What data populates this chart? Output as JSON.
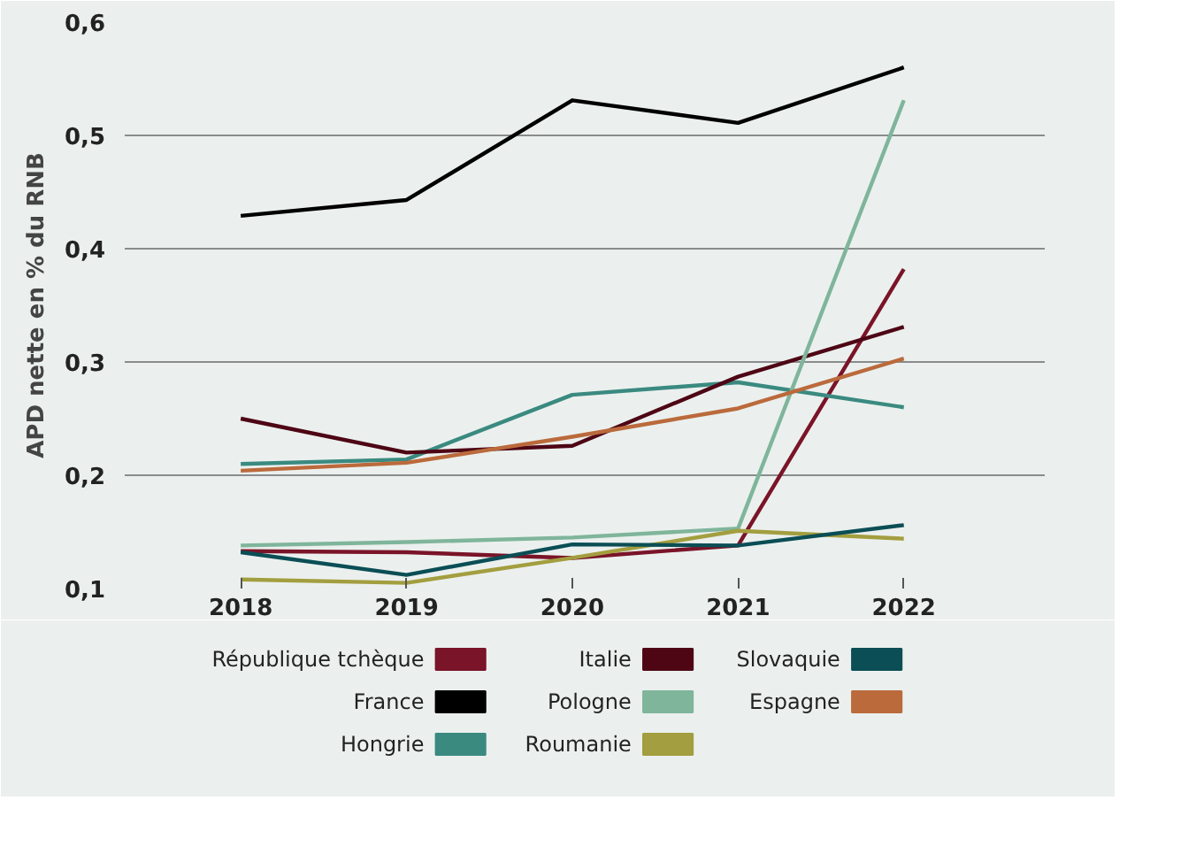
{
  "chart_data": {
    "type": "line",
    "ylabel": "APD nette en % du RNB",
    "x": [
      2018,
      2019,
      2020,
      2021,
      2022
    ],
    "xlim": [
      2017.3,
      2022.85
    ],
    "xticks": [
      2018,
      2019,
      2020,
      2021,
      2022
    ],
    "ylim": [
      0.1,
      0.6
    ],
    "yticks": [
      {
        "value": 0.1,
        "label": "0,1"
      },
      {
        "value": 0.2,
        "label": "0,2"
      },
      {
        "value": 0.3,
        "label": "0,3"
      },
      {
        "value": 0.4,
        "label": "0,4"
      },
      {
        "value": 0.5,
        "label": "0,5"
      },
      {
        "value": 0.6,
        "label": "0,6"
      }
    ],
    "grid": "y",
    "legend": "bottom",
    "marker": "none",
    "line_style": "solid",
    "series": [
      {
        "name": "République tchèque",
        "color": "#7a1428",
        "values": [
          0.133,
          0.132,
          0.127,
          0.138,
          0.382
        ]
      },
      {
        "name": "France",
        "color": "#000000",
        "values": [
          0.429,
          0.443,
          0.531,
          0.511,
          0.56
        ]
      },
      {
        "name": "Hongrie",
        "color": "#3a8a80",
        "values": [
          0.21,
          0.214,
          0.271,
          0.282,
          0.26
        ]
      },
      {
        "name": "Italie",
        "color": "#4e0615",
        "values": [
          0.25,
          0.22,
          0.226,
          0.287,
          0.331
        ]
      },
      {
        "name": "Pologne",
        "color": "#7fb59b",
        "values": [
          0.138,
          0.141,
          0.145,
          0.153,
          0.531
        ]
      },
      {
        "name": "Roumanie",
        "color": "#a39e3f",
        "values": [
          0.108,
          0.105,
          0.127,
          0.151,
          0.144
        ]
      },
      {
        "name": "Slovaquie",
        "color": "#0b4e55",
        "values": [
          0.132,
          0.112,
          0.139,
          0.138,
          0.156
        ]
      },
      {
        "name": "Espagne",
        "color": "#bb6a3c",
        "values": [
          0.204,
          0.211,
          0.234,
          0.259,
          0.303
        ]
      }
    ]
  }
}
